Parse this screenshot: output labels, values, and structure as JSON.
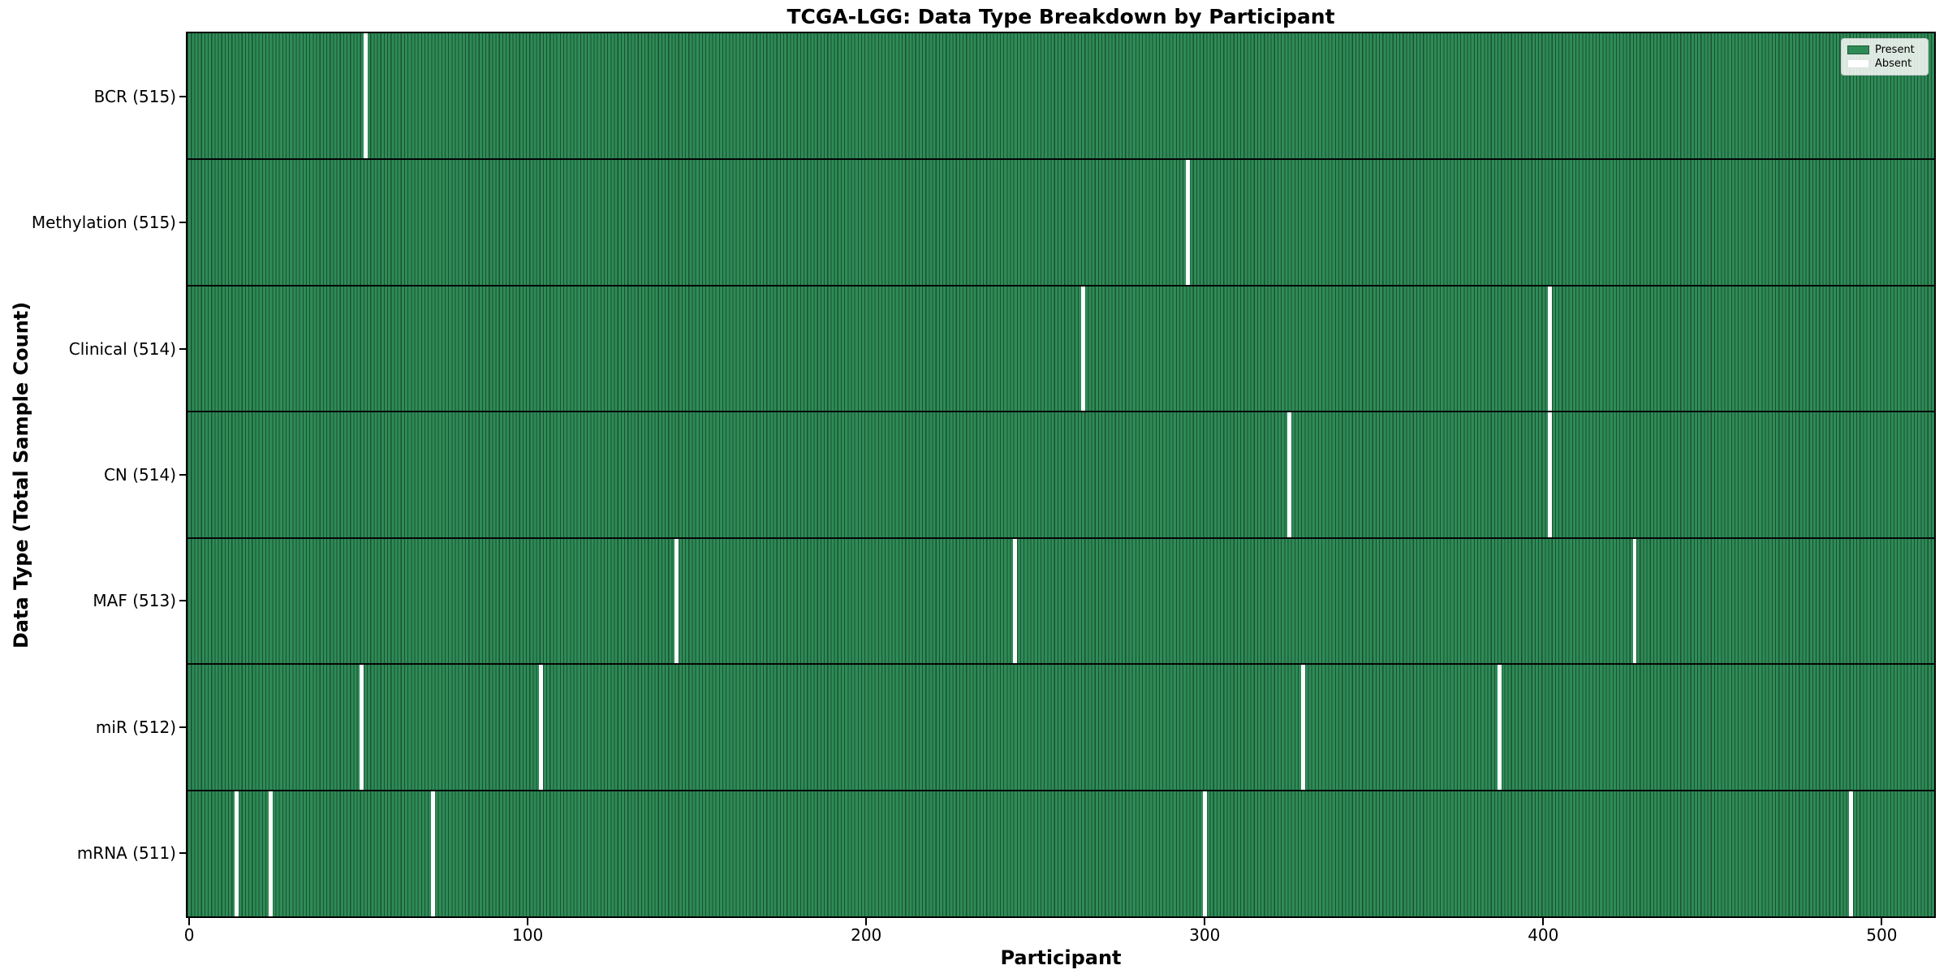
{
  "chart_data": {
    "type": "heatmap",
    "title": "TCGA-LGG: Data Type Breakdown by Participant",
    "xlabel": "Participant",
    "ylabel": "Data Type (Total Sample Count)",
    "x_ticks": [
      0,
      100,
      200,
      300,
      400,
      500
    ],
    "x_range": [
      0,
      516
    ],
    "total_participants": 516,
    "grid": false,
    "legend_position": "upper right",
    "colors": {
      "present": "#2E8B57",
      "absent": "#FFFFFF",
      "bar_edge": "rgba(0,0,0,0.42)",
      "separator": "#050505"
    },
    "legend": [
      {
        "label": "Present",
        "state": "present",
        "color": "#2E8B57"
      },
      {
        "label": "Absent",
        "state": "absent",
        "color": "#FFFFFF"
      }
    ],
    "rows": [
      {
        "label": "BCR (515)",
        "data_type": "BCR",
        "present_count": 515,
        "absent_participants": [
          52
        ]
      },
      {
        "label": "Methylation (515)",
        "data_type": "Methylation",
        "present_count": 515,
        "absent_participants": [
          295
        ]
      },
      {
        "label": "Clinical (514)",
        "data_type": "Clinical",
        "present_count": 514,
        "absent_participants": [
          264,
          402
        ]
      },
      {
        "label": "CN (514)",
        "data_type": "CN",
        "present_count": 514,
        "absent_participants": [
          325,
          402
        ]
      },
      {
        "label": "MAF (513)",
        "data_type": "MAF",
        "present_count": 513,
        "absent_participants": [
          144,
          244,
          427
        ]
      },
      {
        "label": "miR (512)",
        "data_type": "miR",
        "present_count": 512,
        "absent_participants": [
          51,
          104,
          329,
          387
        ]
      },
      {
        "label": "mRNA (511)",
        "data_type": "mRNA",
        "present_count": 511,
        "absent_participants": [
          14,
          24,
          72,
          300,
          491
        ]
      }
    ]
  }
}
